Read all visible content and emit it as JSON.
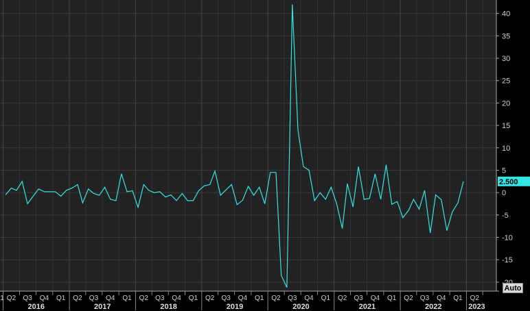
{
  "chart_data": {
    "type": "line",
    "line_color": "#33e6e6",
    "background": "#222222",
    "grid": true,
    "ylim": [
      -22,
      43
    ],
    "y_ticks": [
      40,
      35,
      30,
      25,
      20,
      15,
      10,
      5,
      0,
      -5,
      -10,
      -15,
      -20
    ],
    "last_value_label": "2.500",
    "x_quarter_labels": [
      "1",
      "Q2",
      "Q3",
      "Q4",
      "Q1",
      "Q2",
      "Q3",
      "Q4",
      "Q1",
      "Q2",
      "Q3",
      "Q4",
      "Q1",
      "Q2",
      "Q3",
      "Q4",
      "Q1",
      "Q2",
      "Q3",
      "Q4",
      "Q1",
      "Q2",
      "Q3",
      "Q4",
      "Q1",
      "Q2",
      "Q3",
      "Q4",
      "Q1",
      "Q2"
    ],
    "x_year_labels": [
      "2016",
      "2017",
      "2018",
      "2019",
      "2020",
      "2021",
      "2022",
      "2023"
    ],
    "x_range": [
      "2015-12-15",
      "2023-06-15"
    ],
    "series": [
      {
        "points": [
          [
            "2016-01-15",
            -0.5
          ],
          [
            "2016-02-15",
            1.0
          ],
          [
            "2016-03-15",
            0.5
          ],
          [
            "2016-04-15",
            2.5
          ],
          [
            "2016-05-15",
            -2.5
          ],
          [
            "2016-06-15",
            -0.8
          ],
          [
            "2016-07-15",
            0.8
          ],
          [
            "2016-08-15",
            0.2
          ],
          [
            "2016-09-15",
            0.2
          ],
          [
            "2016-10-15",
            0.2
          ],
          [
            "2016-11-15",
            -0.8
          ],
          [
            "2016-12-15",
            0.5
          ],
          [
            "2017-01-15",
            1.0
          ],
          [
            "2017-02-15",
            1.8
          ],
          [
            "2017-03-15",
            -2.3
          ],
          [
            "2017-04-15",
            0.8
          ],
          [
            "2017-05-15",
            -0.2
          ],
          [
            "2017-06-15",
            -0.6
          ],
          [
            "2017-07-15",
            1.2
          ],
          [
            "2017-08-15",
            -1.5
          ],
          [
            "2017-09-15",
            -1.8
          ],
          [
            "2017-10-15",
            4.2
          ],
          [
            "2017-11-15",
            0.2
          ],
          [
            "2017-12-15",
            0.4
          ],
          [
            "2018-01-15",
            -3.3
          ],
          [
            "2018-02-15",
            1.8
          ],
          [
            "2018-03-15",
            0.5
          ],
          [
            "2018-04-15",
            0.0
          ],
          [
            "2018-05-15",
            0.2
          ],
          [
            "2018-06-15",
            -1.0
          ],
          [
            "2018-07-15",
            -0.5
          ],
          [
            "2018-08-15",
            -1.8
          ],
          [
            "2018-09-15",
            -0.2
          ],
          [
            "2018-10-15",
            -1.8
          ],
          [
            "2018-11-15",
            -1.8
          ],
          [
            "2018-12-15",
            0.4
          ],
          [
            "2019-01-15",
            1.5
          ],
          [
            "2019-02-15",
            1.8
          ],
          [
            "2019-03-15",
            4.8
          ],
          [
            "2019-04-15",
            -0.6
          ],
          [
            "2019-05-15",
            0.6
          ],
          [
            "2019-06-15",
            1.8
          ],
          [
            "2019-07-15",
            -2.7
          ],
          [
            "2019-08-15",
            -1.7
          ],
          [
            "2019-09-15",
            1.4
          ],
          [
            "2019-10-15",
            -0.6
          ],
          [
            "2019-11-15",
            1.2
          ],
          [
            "2019-12-15",
            -2.5
          ],
          [
            "2020-01-15",
            4.5
          ],
          [
            "2020-02-15",
            4.5
          ],
          [
            "2020-03-15",
            -18.5
          ],
          [
            "2020-04-15",
            -21.2
          ],
          [
            "2020-05-15",
            42.0
          ],
          [
            "2020-06-15",
            14.0
          ],
          [
            "2020-07-15",
            5.8
          ],
          [
            "2020-08-15",
            5.0
          ],
          [
            "2020-09-15",
            -1.8
          ],
          [
            "2020-10-15",
            0.0
          ],
          [
            "2020-11-15",
            -1.5
          ],
          [
            "2020-12-15",
            1.2
          ],
          [
            "2021-01-15",
            -2.5
          ],
          [
            "2021-02-15",
            -8.0
          ],
          [
            "2021-03-15",
            2.0
          ],
          [
            "2021-04-15",
            -3.2
          ],
          [
            "2021-05-15",
            5.8
          ],
          [
            "2021-06-15",
            -1.5
          ],
          [
            "2021-07-15",
            -1.3
          ],
          [
            "2021-08-15",
            4.2
          ],
          [
            "2021-09-15",
            -1.5
          ],
          [
            "2021-10-15",
            6.2
          ],
          [
            "2021-11-15",
            -2.6
          ],
          [
            "2021-12-15",
            -2.0
          ],
          [
            "2022-01-15",
            -5.6
          ],
          [
            "2022-02-15",
            -4.0
          ],
          [
            "2022-03-15",
            -1.5
          ],
          [
            "2022-04-15",
            -3.7
          ],
          [
            "2022-05-15",
            0.5
          ],
          [
            "2022-06-15",
            -9.0
          ],
          [
            "2022-07-15",
            -0.5
          ],
          [
            "2022-08-15",
            -1.6
          ],
          [
            "2022-09-15",
            -8.5
          ],
          [
            "2022-10-15",
            -4.3
          ],
          [
            "2022-11-15",
            -2.3
          ],
          [
            "2022-12-15",
            2.5
          ]
        ]
      }
    ]
  },
  "controls": {
    "auto_label": "Auto"
  }
}
